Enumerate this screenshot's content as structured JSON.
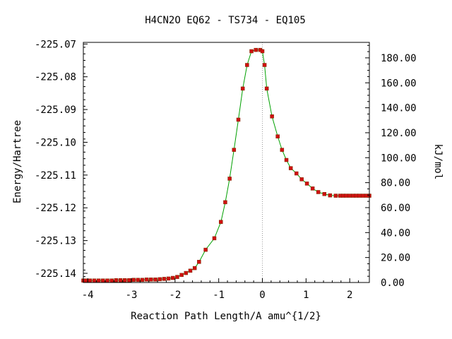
{
  "chart_data": {
    "type": "line",
    "title": "H4CN2O   EQ62 - TS734 - EQ105",
    "xlabel": "Reaction Path Length/A amu^{1/2}",
    "ylabel": "Energy/Hartree",
    "y2label": "kJ/mol",
    "xlim": [
      -4.1,
      2.45
    ],
    "ylim": [
      -225.1428,
      -225.0695
    ],
    "y2lim": [
      0,
      192.4
    ],
    "x_ticks": [
      "-4",
      "-3",
      "-2",
      "-1",
      "0",
      "1",
      "2"
    ],
    "y_ticks": [
      "-225.07",
      "-225.08",
      "-225.09",
      "-225.10",
      "-225.11",
      "-225.12",
      "-225.13",
      "-225.14"
    ],
    "y2_ticks": [
      "0.00",
      "20.00",
      "40.00",
      "60.00",
      "80.00",
      "100.00",
      "120.00",
      "140.00",
      "160.00",
      "180.00"
    ],
    "transition_state_x": 0.0,
    "line_color": "#00a000",
    "marker_color": "#d01010",
    "ts_line_color": "#999999",
    "series": [
      {
        "x": [
          -4.1,
          -4.05,
          -3.95,
          -3.85,
          -3.75,
          -3.65,
          -3.55,
          -3.45,
          -3.35,
          -3.25,
          -3.15,
          -3.05,
          -2.95,
          -2.85,
          -2.75,
          -2.65,
          -2.55,
          -2.45,
          -2.35,
          -2.25,
          -2.15,
          -2.05,
          -1.95,
          -1.85,
          -1.75,
          -1.65,
          -1.55,
          -1.45,
          -1.3,
          -1.1,
          -0.95,
          -0.85,
          -0.75,
          -0.65,
          -0.55,
          -0.45,
          -0.35,
          -0.25,
          -0.15,
          -0.05,
          0.0,
          0.05,
          0.1,
          0.22,
          0.35,
          0.45,
          0.55,
          0.65,
          0.78,
          0.9,
          1.02,
          1.15,
          1.28,
          1.42,
          1.55,
          1.68,
          1.78,
          1.85,
          1.92,
          2.0,
          2.08,
          2.15,
          2.22,
          2.3,
          2.38,
          2.45
        ],
        "y": [
          -225.1422,
          -225.1422,
          -225.1422,
          -225.1422,
          -225.1422,
          -225.1422,
          -225.1422,
          -225.1422,
          -225.1421,
          -225.1421,
          -225.1421,
          -225.1421,
          -225.142,
          -225.142,
          -225.142,
          -225.1419,
          -225.1419,
          -225.1419,
          -225.1418,
          -225.1417,
          -225.1416,
          -225.1414,
          -225.1411,
          -225.1405,
          -225.1399,
          -225.1392,
          -225.1384,
          -225.1365,
          -225.1328,
          -225.1293,
          -225.1243,
          -225.1183,
          -225.1111,
          -225.1023,
          -225.0931,
          -225.0836,
          -225.0764,
          -225.0722,
          -225.0718,
          -225.0718,
          -225.0722,
          -225.0764,
          -225.0836,
          -225.0921,
          -225.0982,
          -225.1023,
          -225.1054,
          -225.1079,
          -225.1095,
          -225.1113,
          -225.1126,
          -225.1141,
          -225.1152,
          -225.1158,
          -225.1162,
          -225.1163,
          -225.1163,
          -225.1163,
          -225.1163,
          -225.1163,
          -225.1163,
          -225.1163,
          -225.1163,
          -225.1163,
          -225.1163,
          -225.1163
        ]
      }
    ]
  }
}
